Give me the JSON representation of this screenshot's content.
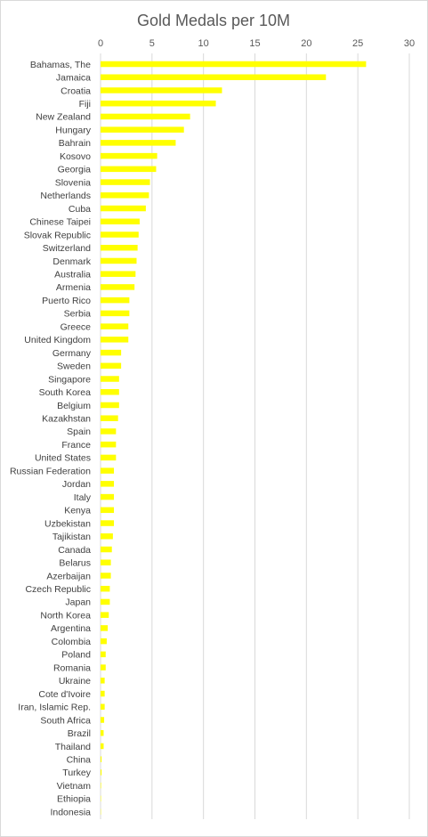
{
  "chart_data": {
    "type": "bar",
    "orientation": "horizontal",
    "title": "Gold Medals per 10M",
    "xlabel": "",
    "ylabel": "",
    "xlim": [
      0,
      30
    ],
    "xticks": [
      0,
      5,
      10,
      15,
      20,
      25,
      30
    ],
    "axis_position": "top",
    "grid": true,
    "legend": "none",
    "bar_color": "#ffff00",
    "categories": [
      "Bahamas, The",
      "Jamaica",
      "Croatia",
      "Fiji",
      "New Zealand",
      "Hungary",
      "Bahrain",
      "Kosovo",
      "Georgia",
      "Slovenia",
      "Netherlands",
      "Cuba",
      "Chinese Taipei",
      "Slovak Republic",
      "Switzerland",
      "Denmark",
      "Australia",
      "Armenia",
      "Puerto Rico",
      "Serbia",
      "Greece",
      "United Kingdom",
      "Germany",
      "Sweden",
      "Singapore",
      "South Korea",
      "Belgium",
      "Kazakhstan",
      "Spain",
      "France",
      "United States",
      "Russian Federation",
      "Jordan",
      "Italy",
      "Kenya",
      "Uzbekistan",
      "Tajikistan",
      "Canada",
      "Belarus",
      "Azerbaijan",
      "Czech Republic",
      "Japan",
      "North Korea",
      "Argentina",
      "Colombia",
      "Poland",
      "Romania",
      "Ukraine",
      "Cote d'Ivoire",
      "Iran, Islamic Rep.",
      "South Africa",
      "Brazil",
      "Thailand",
      "China",
      "Turkey",
      "Vietnam",
      "Ethiopia",
      "Indonesia"
    ],
    "values": [
      25.8,
      21.9,
      11.8,
      11.2,
      8.7,
      8.1,
      7.3,
      5.5,
      5.4,
      4.8,
      4.7,
      4.4,
      3.8,
      3.7,
      3.6,
      3.5,
      3.4,
      3.3,
      2.8,
      2.8,
      2.7,
      2.7,
      2.0,
      2.0,
      1.8,
      1.8,
      1.8,
      1.7,
      1.5,
      1.5,
      1.5,
      1.3,
      1.3,
      1.3,
      1.3,
      1.3,
      1.2,
      1.1,
      1.0,
      1.0,
      0.9,
      0.9,
      0.8,
      0.7,
      0.6,
      0.5,
      0.5,
      0.4,
      0.4,
      0.4,
      0.35,
      0.3,
      0.3,
      0.1,
      0.1,
      0.05,
      0.04,
      0.03
    ]
  }
}
